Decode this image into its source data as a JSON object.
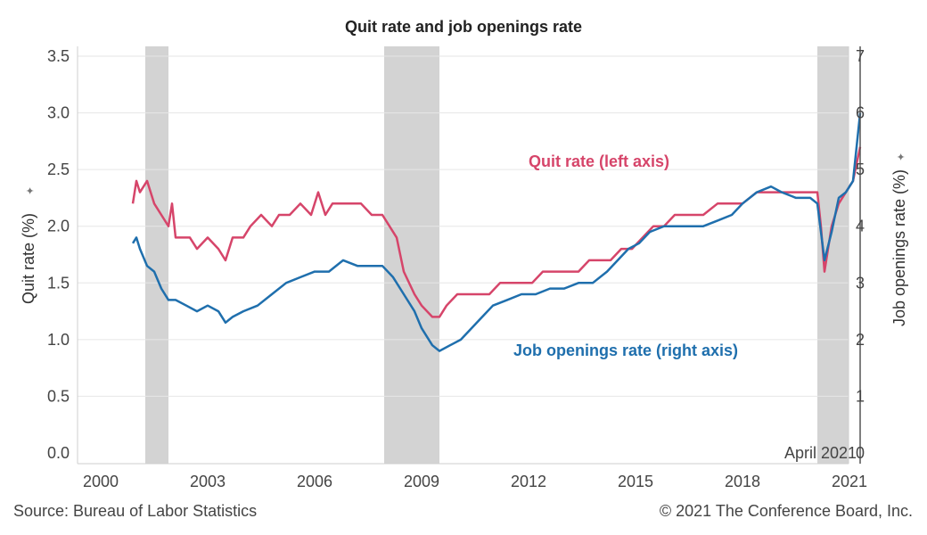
{
  "header": {
    "title": "Quit rate and job openings rate"
  },
  "footer": {
    "source": "Source: Bureau of Labor Statistics",
    "copyright": "© 2021 The Conference Board, Inc."
  },
  "colors": {
    "quit": "#d6456a",
    "jobs": "#1f6fad",
    "recession": "#d3d3d3",
    "grid": "#e6e6e6"
  },
  "chart_data": {
    "type": "line",
    "title": "Quit rate and job openings rate",
    "ylabel_left": "Quit rate (%)",
    "ylabel_right": "Job openings rate (%)",
    "ylim_left": [
      0,
      3.5
    ],
    "ylim_right": [
      0,
      7
    ],
    "xlim": [
      2000,
      2021.6
    ],
    "x_ticks": [
      "2000",
      "2003",
      "2006",
      "2009",
      "2012",
      "2015",
      "2018",
      "2021"
    ],
    "y_ticks_left": [
      "0.0",
      "0.5",
      "1.0",
      "1.5",
      "2.0",
      "2.5",
      "3.0",
      "3.5"
    ],
    "y_ticks_right": [
      "0",
      "1",
      "2",
      "3",
      "4",
      "5",
      "6",
      "7"
    ],
    "recessions": [
      [
        2001.25,
        2001.9
      ],
      [
        2007.95,
        2009.5
      ],
      [
        2020.1,
        2021.3
      ]
    ],
    "vline": {
      "x": 2021.3,
      "label": "April 2021"
    },
    "grid": true,
    "series": [
      {
        "name": "Quit rate (left axis)",
        "axis": "left",
        "x": [
          2000.9,
          2001.0,
          2001.1,
          2001.3,
          2001.5,
          2001.7,
          2001.9,
          2002.0,
          2002.1,
          2002.3,
          2002.5,
          2002.7,
          2003.0,
          2003.3,
          2003.5,
          2003.7,
          2004.0,
          2004.2,
          2004.5,
          2004.8,
          2005.0,
          2005.3,
          2005.6,
          2005.9,
          2006.1,
          2006.3,
          2006.5,
          2006.7,
          2007.0,
          2007.3,
          2007.6,
          2007.9,
          2008.1,
          2008.3,
          2008.5,
          2008.8,
          2009.0,
          2009.3,
          2009.5,
          2009.7,
          2010.0,
          2010.3,
          2010.6,
          2010.9,
          2011.2,
          2011.5,
          2011.8,
          2012.1,
          2012.4,
          2012.8,
          2013.1,
          2013.4,
          2013.7,
          2014.0,
          2014.3,
          2014.6,
          2014.9,
          2015.2,
          2015.5,
          2015.8,
          2016.1,
          2016.5,
          2016.9,
          2017.3,
          2017.7,
          2018.0,
          2018.4,
          2018.8,
          2019.1,
          2019.5,
          2019.9,
          2020.1,
          2020.2,
          2020.3,
          2020.5,
          2020.7,
          2020.9,
          2021.1,
          2021.3
        ],
        "values": [
          2.2,
          2.4,
          2.3,
          2.4,
          2.2,
          2.1,
          2.0,
          2.2,
          1.9,
          1.9,
          1.9,
          1.8,
          1.9,
          1.8,
          1.7,
          1.9,
          1.9,
          2.0,
          2.1,
          2.0,
          2.1,
          2.1,
          2.2,
          2.1,
          2.3,
          2.1,
          2.2,
          2.2,
          2.2,
          2.2,
          2.1,
          2.1,
          2.0,
          1.9,
          1.6,
          1.4,
          1.3,
          1.2,
          1.2,
          1.3,
          1.4,
          1.4,
          1.4,
          1.4,
          1.5,
          1.5,
          1.5,
          1.5,
          1.6,
          1.6,
          1.6,
          1.6,
          1.7,
          1.7,
          1.7,
          1.8,
          1.8,
          1.9,
          2.0,
          2.0,
          2.1,
          2.1,
          2.1,
          2.2,
          2.2,
          2.2,
          2.3,
          2.3,
          2.3,
          2.3,
          2.3,
          2.3,
          2.0,
          1.6,
          2.0,
          2.2,
          2.3,
          2.4,
          2.7
        ]
      },
      {
        "name": "Job openings rate (right axis)",
        "axis": "right",
        "x": [
          2000.9,
          2001.0,
          2001.1,
          2001.3,
          2001.5,
          2001.7,
          2001.9,
          2002.1,
          2002.4,
          2002.7,
          2003.0,
          2003.3,
          2003.5,
          2003.7,
          2004.0,
          2004.4,
          2004.8,
          2005.2,
          2005.6,
          2006.0,
          2006.4,
          2006.8,
          2007.2,
          2007.6,
          2007.9,
          2008.2,
          2008.5,
          2008.8,
          2009.0,
          2009.3,
          2009.5,
          2009.8,
          2010.1,
          2010.4,
          2010.7,
          2011.0,
          2011.4,
          2011.8,
          2012.2,
          2012.6,
          2013.0,
          2013.4,
          2013.8,
          2014.2,
          2014.5,
          2014.8,
          2015.1,
          2015.4,
          2015.8,
          2016.1,
          2016.5,
          2016.9,
          2017.3,
          2017.7,
          2018.0,
          2018.4,
          2018.8,
          2019.1,
          2019.5,
          2019.9,
          2020.1,
          2020.2,
          2020.3,
          2020.5,
          2020.7,
          2020.9,
          2021.1,
          2021.3
        ],
        "values": [
          3.7,
          3.8,
          3.6,
          3.3,
          3.2,
          2.9,
          2.7,
          2.7,
          2.6,
          2.5,
          2.6,
          2.5,
          2.3,
          2.4,
          2.5,
          2.6,
          2.8,
          3.0,
          3.1,
          3.2,
          3.2,
          3.4,
          3.3,
          3.3,
          3.3,
          3.1,
          2.8,
          2.5,
          2.2,
          1.9,
          1.8,
          1.9,
          2.0,
          2.2,
          2.4,
          2.6,
          2.7,
          2.8,
          2.8,
          2.9,
          2.9,
          3.0,
          3.0,
          3.2,
          3.4,
          3.6,
          3.7,
          3.9,
          4.0,
          4.0,
          4.0,
          4.0,
          4.1,
          4.2,
          4.4,
          4.6,
          4.7,
          4.6,
          4.5,
          4.5,
          4.4,
          3.9,
          3.4,
          3.9,
          4.5,
          4.6,
          4.8,
          6.0
        ]
      }
    ],
    "annotations": [
      {
        "text": "Quit rate (left axis)",
        "color": "#d6456a"
      },
      {
        "text": "Job openings rate (right axis)",
        "color": "#1f6fad"
      }
    ]
  }
}
